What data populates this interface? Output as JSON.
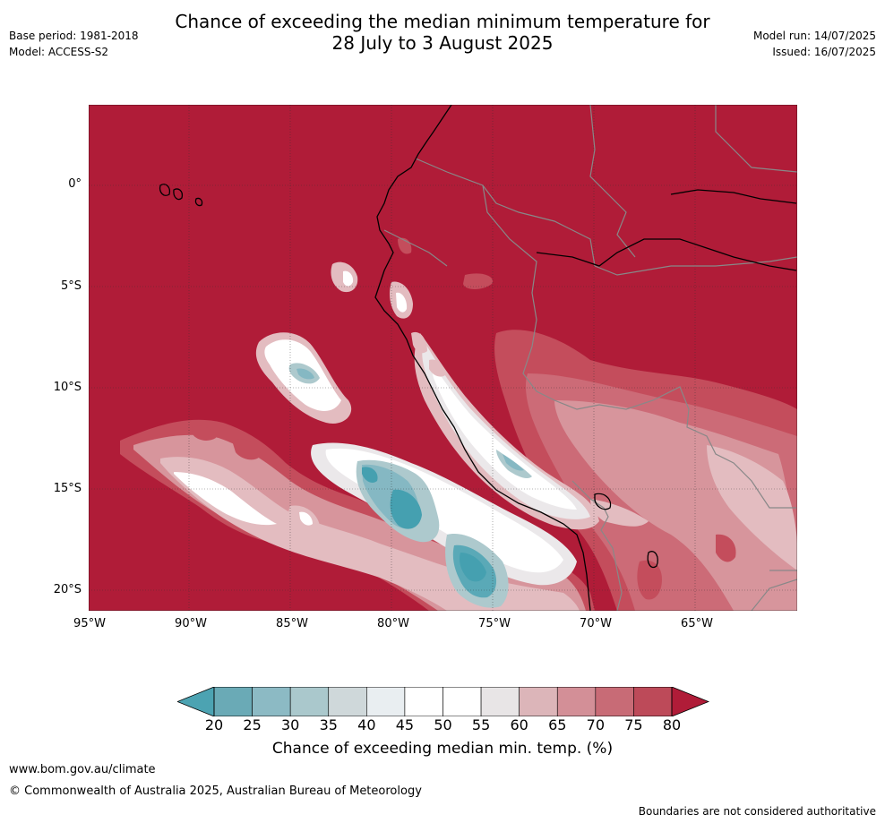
{
  "header": {
    "title_line1": "Chance of exceeding the median minimum temperature for",
    "title_line2": "28 July to 3 August 2025",
    "base_period": "Base period: 1981-2018",
    "model": "Model: ACCESS-S2",
    "model_run": "Model run: 14/07/2025",
    "issued": "Issued: 16/07/2025"
  },
  "map": {
    "lat_labels": [
      "0°",
      "5°S",
      "10°S",
      "15°S",
      "20°S"
    ],
    "lon_labels": [
      "95°W",
      "90°W",
      "85°W",
      "80°W",
      "75°W",
      "70°W",
      "65°W"
    ],
    "colors": {
      "deep_red": "#b01c38",
      "red": "#c44d5c",
      "mid_red": "#cc6b77",
      "pink": "#d7959c",
      "light_pink": "#e3bcc0",
      "pale_grey": "#ebe8ea",
      "white": "#ffffff",
      "pale_blue": "#e8eef1",
      "light_grey_blue": "#cfd8da",
      "grey_blue": "#adc9cd",
      "blue": "#85b8c3",
      "teal": "#5aa9b7",
      "deep_teal": "#45a0b0",
      "country_border": "#888888",
      "coastline": "#000000"
    }
  },
  "colorbar": {
    "ticks": [
      "20",
      "25",
      "30",
      "35",
      "40",
      "45",
      "50",
      "55",
      "60",
      "65",
      "70",
      "75",
      "80"
    ],
    "segment_colors": [
      "#6aaab6",
      "#8cbac4",
      "#aac8cc",
      "#cfd8da",
      "#e9eef1",
      "#ffffff",
      "#ffffff",
      "#e8e5e6",
      "#dcb5b9",
      "#d38f97",
      "#c86b76",
      "#bd4a59"
    ],
    "low_extend_color": "#4ca3b2",
    "high_extend_color": "#b01c38",
    "label": "Chance of exceeding median min. temp. (%)"
  },
  "footer": {
    "url": "www.bom.gov.au/climate",
    "copyright": "© Commonwealth of Australia 2025, Australian Bureau of Meteorology",
    "disclaimer": "Boundaries are not considered authoritative"
  }
}
